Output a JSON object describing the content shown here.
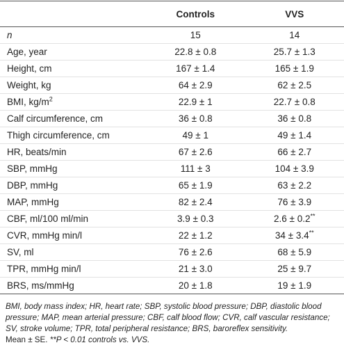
{
  "table": {
    "header": [
      "",
      "Controls",
      "VVS"
    ],
    "rows": [
      [
        "n",
        "15",
        "14"
      ],
      [
        "Age, year",
        "22.8 ± 0.8",
        "25.7 ± 1.3"
      ],
      [
        "Height, cm",
        "167 ± 1.4",
        "165 ± 1.9"
      ],
      [
        "Weight, kg",
        "64 ± 2.9",
        "62 ± 2.5"
      ],
      [
        {
          "text": "BMI, kg/m",
          "sup": "2"
        },
        "22.9 ± 1",
        "22.7 ± 0.8"
      ],
      [
        "Calf circumference, cm",
        "36 ± 0.8",
        "36 ± 0.8"
      ],
      [
        "Thigh circumference, cm",
        "49 ± 1",
        "49 ± 1.4"
      ],
      [
        "HR, beats/min",
        "67 ± 2.6",
        "66 ± 2.7"
      ],
      [
        "SBP, mmHg",
        "111 ± 3",
        "104 ± 3.9"
      ],
      [
        "DBP, mmHg",
        "65 ± 1.9",
        "63 ± 2.2"
      ],
      [
        "MAP, mmHg",
        "82 ± 2.4",
        "76 ± 3.9"
      ],
      [
        "CBF, ml/100 ml/min",
        "3.9 ± 0.3",
        {
          "text": "2.6 ± 0.2",
          "sup": "**"
        }
      ],
      [
        "CVR, mmHg min/l",
        "22 ± 1.2",
        {
          "text": "34 ± 3.4",
          "sup": "**"
        }
      ],
      [
        "SV, ml",
        "76 ± 2.6",
        "68 ± 5.9"
      ],
      [
        "TPR, mmHg min/l",
        "21 ± 3.0",
        "25 ± 9.7"
      ],
      [
        "BRS, ms/mmHg",
        "20 ± 1.8",
        "19 ± 1.9"
      ]
    ]
  },
  "footnote": {
    "abbreviations": "BMI, body mass index; HR, heart rate; SBP, systolic blood pressure; DBP, diastolic blood pressure; MAP, mean arterial pressure; CBF, calf blood flow; CVR, calf vascular resistance; SV, stroke volume; TPR, total peripheral resistance; BRS, baroreflex sensitivity.",
    "mean": "Mean ± SE.",
    "significance": "**P < 0.01 controls vs. VVS."
  }
}
